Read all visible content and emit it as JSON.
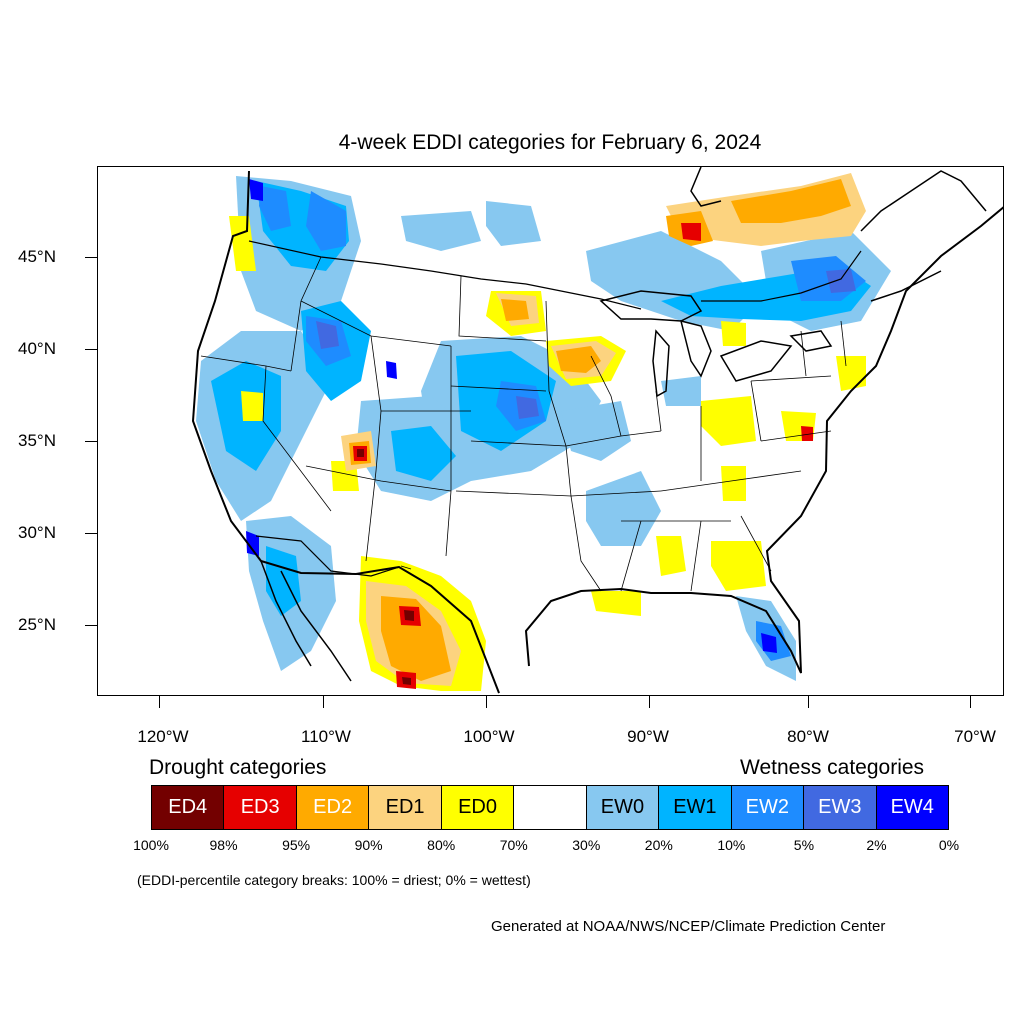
{
  "title": "4-week EDDI categories for February 6, 2024",
  "lat_labels": [
    "45°N",
    "40°N",
    "35°N",
    "30°N",
    "25°N"
  ],
  "lon_labels": [
    "120°W",
    "110°W",
    "100°W",
    "90°W",
    "80°W",
    "70°W"
  ],
  "legend": {
    "drought_heading": "Drought categories",
    "wetness_heading": "Wetness categories",
    "categories": [
      {
        "label": "ED4",
        "color": "#730000",
        "text_color": "#ffffff"
      },
      {
        "label": "ED3",
        "color": "#e60000",
        "text_color": "#ffffff"
      },
      {
        "label": "ED2",
        "color": "#ffaa00",
        "text_color": "#ffffff"
      },
      {
        "label": "ED1",
        "color": "#fcd37f",
        "text_color": "#000000"
      },
      {
        "label": "ED0",
        "color": "#ffff00",
        "text_color": "#000000"
      },
      {
        "label": "",
        "color": "#ffffff",
        "text_color": "#000000"
      },
      {
        "label": "EW0",
        "color": "#87c8f0",
        "text_color": "#000000"
      },
      {
        "label": "EW1",
        "color": "#00b4ff",
        "text_color": "#000000"
      },
      {
        "label": "EW2",
        "color": "#1e8cff",
        "text_color": "#ffffff"
      },
      {
        "label": "EW3",
        "color": "#4169e1",
        "text_color": "#ffffff"
      },
      {
        "label": "EW4",
        "color": "#0000ff",
        "text_color": "#ffffff"
      }
    ],
    "breaks": [
      "100%",
      "98%",
      "95%",
      "90%",
      "80%",
      "70%",
      "30%",
      "20%",
      "10%",
      "5%",
      "2%",
      "0%"
    ]
  },
  "note": "(EDDI-percentile category breaks: 100% = driest; 0% = wettest)",
  "credit": "Generated at NOAA/NWS/NCEP/Climate Prediction Center"
}
